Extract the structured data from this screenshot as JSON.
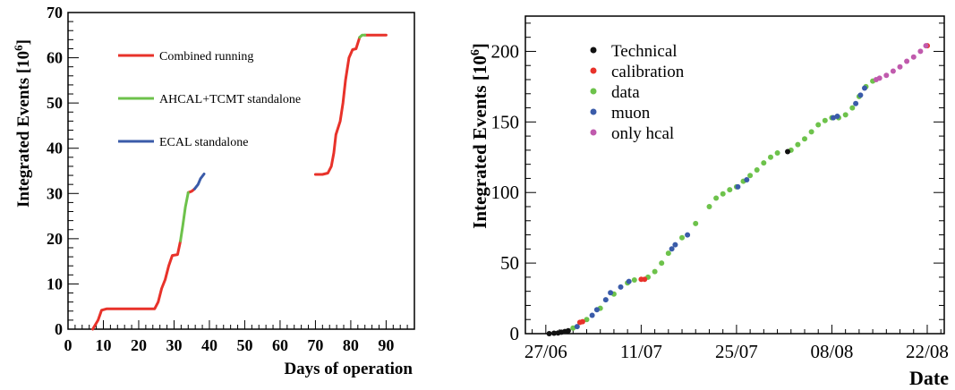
{
  "chart_data": [
    {
      "type": "line",
      "xlabel": "Days of operation",
      "ylabel_main": "Integrated Events [10",
      "ylabel_exp": "6",
      "ylabel_end": "]",
      "xlim": [
        0,
        98
      ],
      "ylim": [
        0,
        70
      ],
      "xticks": [
        0,
        10,
        20,
        30,
        40,
        50,
        60,
        70,
        80,
        90
      ],
      "yticks": [
        0,
        10,
        20,
        30,
        40,
        50,
        60,
        70
      ],
      "grid": false,
      "legend_position": "top-left",
      "series": [
        {
          "name": "Combined running",
          "color": "#e8322a",
          "segments": [
            [
              [
                7,
                0
              ],
              [
                8.5,
                2
              ],
              [
                9.5,
                4.2
              ],
              [
                11,
                4.5
              ],
              [
                20,
                4.5
              ],
              [
                24.5,
                4.5
              ],
              [
                25.5,
                6
              ],
              [
                26.5,
                9
              ],
              [
                27.5,
                11
              ],
              [
                28.5,
                14
              ],
              [
                29.5,
                16.3
              ],
              [
                31,
                16.5
              ],
              [
                31.8,
                19.5
              ]
            ],
            [
              [
                34,
                30.2
              ],
              [
                35,
                30.5
              ],
              [
                35.8,
                31
              ]
            ],
            [
              [
                70,
                34.2
              ],
              [
                72,
                34.2
              ],
              [
                73.5,
                34.5
              ],
              [
                74.5,
                36
              ],
              [
                75.2,
                39
              ],
              [
                75.8,
                43
              ],
              [
                77,
                46
              ],
              [
                77.8,
                50
              ],
              [
                78.5,
                55
              ],
              [
                79.5,
                60
              ],
              [
                80.5,
                61.8
              ],
              [
                81.5,
                62
              ],
              [
                82.5,
                64.5
              ]
            ],
            [
              [
                84,
                65
              ],
              [
                90,
                65
              ]
            ]
          ]
        },
        {
          "name": "AHCAL+TCMT standalone",
          "color": "#6dc24b",
          "segments": [
            [
              [
                31.8,
                19.5
              ],
              [
                32.5,
                23
              ],
              [
                33.2,
                27
              ],
              [
                34,
                30.2
              ]
            ],
            [
              [
                82.5,
                64.5
              ],
              [
                83.2,
                65
              ],
              [
                84,
                65
              ]
            ]
          ]
        },
        {
          "name": "ECAL standalone",
          "color": "#3a5ba9",
          "segments": [
            [
              [
                35.8,
                31
              ],
              [
                36.8,
                32
              ],
              [
                37.5,
                33.3
              ],
              [
                38.5,
                34.3
              ]
            ]
          ]
        }
      ]
    },
    {
      "type": "scatter",
      "xlabel": "Date",
      "ylabel_main": "Integrated Events [10",
      "ylabel_exp": "6",
      "ylabel_end": "]",
      "xtick_labels": [
        "27/06",
        "11/07",
        "25/07",
        "08/08",
        "22/08"
      ],
      "xtick_days": [
        0,
        14,
        28,
        42,
        56
      ],
      "xlim_days": [
        -3,
        58.5
      ],
      "ylim": [
        0,
        225
      ],
      "yticks": [
        0,
        50,
        100,
        150,
        200
      ],
      "grid": false,
      "legend_position": "top-left",
      "series": [
        {
          "name": "Technical",
          "color": "#111111",
          "points": [
            [
              0.5,
              0
            ],
            [
              1.2,
              0.3
            ],
            [
              1.8,
              0.5
            ],
            [
              2.3,
              1
            ],
            [
              2.8,
              1.5
            ],
            [
              3.3,
              2
            ],
            [
              35.5,
              129
            ]
          ]
        },
        {
          "name": "calibration",
          "color": "#e8322a",
          "points": [
            [
              5,
              8
            ],
            [
              5.4,
              8.5
            ],
            [
              14,
              38.5
            ],
            [
              14.5,
              38.5
            ],
            [
              56,
              204
            ]
          ]
        },
        {
          "name": "data",
          "color": "#6dc24b",
          "points": [
            [
              4,
              4
            ],
            [
              6,
              10
            ],
            [
              8,
              18
            ],
            [
              10,
              28
            ],
            [
              12,
              36
            ],
            [
              13,
              38
            ],
            [
              15,
              40
            ],
            [
              16,
              44
            ],
            [
              17,
              50
            ],
            [
              18,
              57
            ],
            [
              20,
              68
            ],
            [
              22,
              78
            ],
            [
              24,
              90
            ],
            [
              25,
              96
            ],
            [
              26,
              99
            ],
            [
              27,
              102
            ],
            [
              28,
              104
            ],
            [
              29,
              108
            ],
            [
              30,
              112
            ],
            [
              31,
              116
            ],
            [
              32,
              121
            ],
            [
              33,
              125
            ],
            [
              34,
              128
            ],
            [
              36,
              130
            ],
            [
              37,
              134
            ],
            [
              38,
              138
            ],
            [
              39,
              143
            ],
            [
              40,
              148
            ],
            [
              41,
              151
            ],
            [
              42,
              153
            ],
            [
              43,
              153
            ],
            [
              44,
              155
            ],
            [
              45,
              160
            ],
            [
              46,
              168
            ],
            [
              47,
              175
            ],
            [
              48,
              179
            ]
          ]
        },
        {
          "name": "muon",
          "color": "#3a5ba9",
          "points": [
            [
              4.6,
              5
            ],
            [
              6.8,
              13
            ],
            [
              7.5,
              17
            ],
            [
              8.8,
              24
            ],
            [
              9.5,
              29
            ],
            [
              11,
              33
            ],
            [
              12.2,
              37
            ],
            [
              18.5,
              60
            ],
            [
              19,
              63
            ],
            [
              20.8,
              70
            ],
            [
              28.2,
              104
            ],
            [
              29.5,
              109
            ],
            [
              42.2,
              153
            ],
            [
              42.8,
              154
            ],
            [
              45.5,
              163
            ],
            [
              46.2,
              169
            ],
            [
              46.8,
              174
            ]
          ]
        },
        {
          "name": "only hcal",
          "color": "#c05aad",
          "points": [
            [
              48.5,
              180
            ],
            [
              49,
              181
            ],
            [
              50,
              183
            ],
            [
              51,
              186
            ],
            [
              52,
              189
            ],
            [
              53,
              193
            ],
            [
              54,
              196
            ],
            [
              55,
              200
            ],
            [
              55.8,
              204
            ]
          ]
        }
      ]
    }
  ]
}
